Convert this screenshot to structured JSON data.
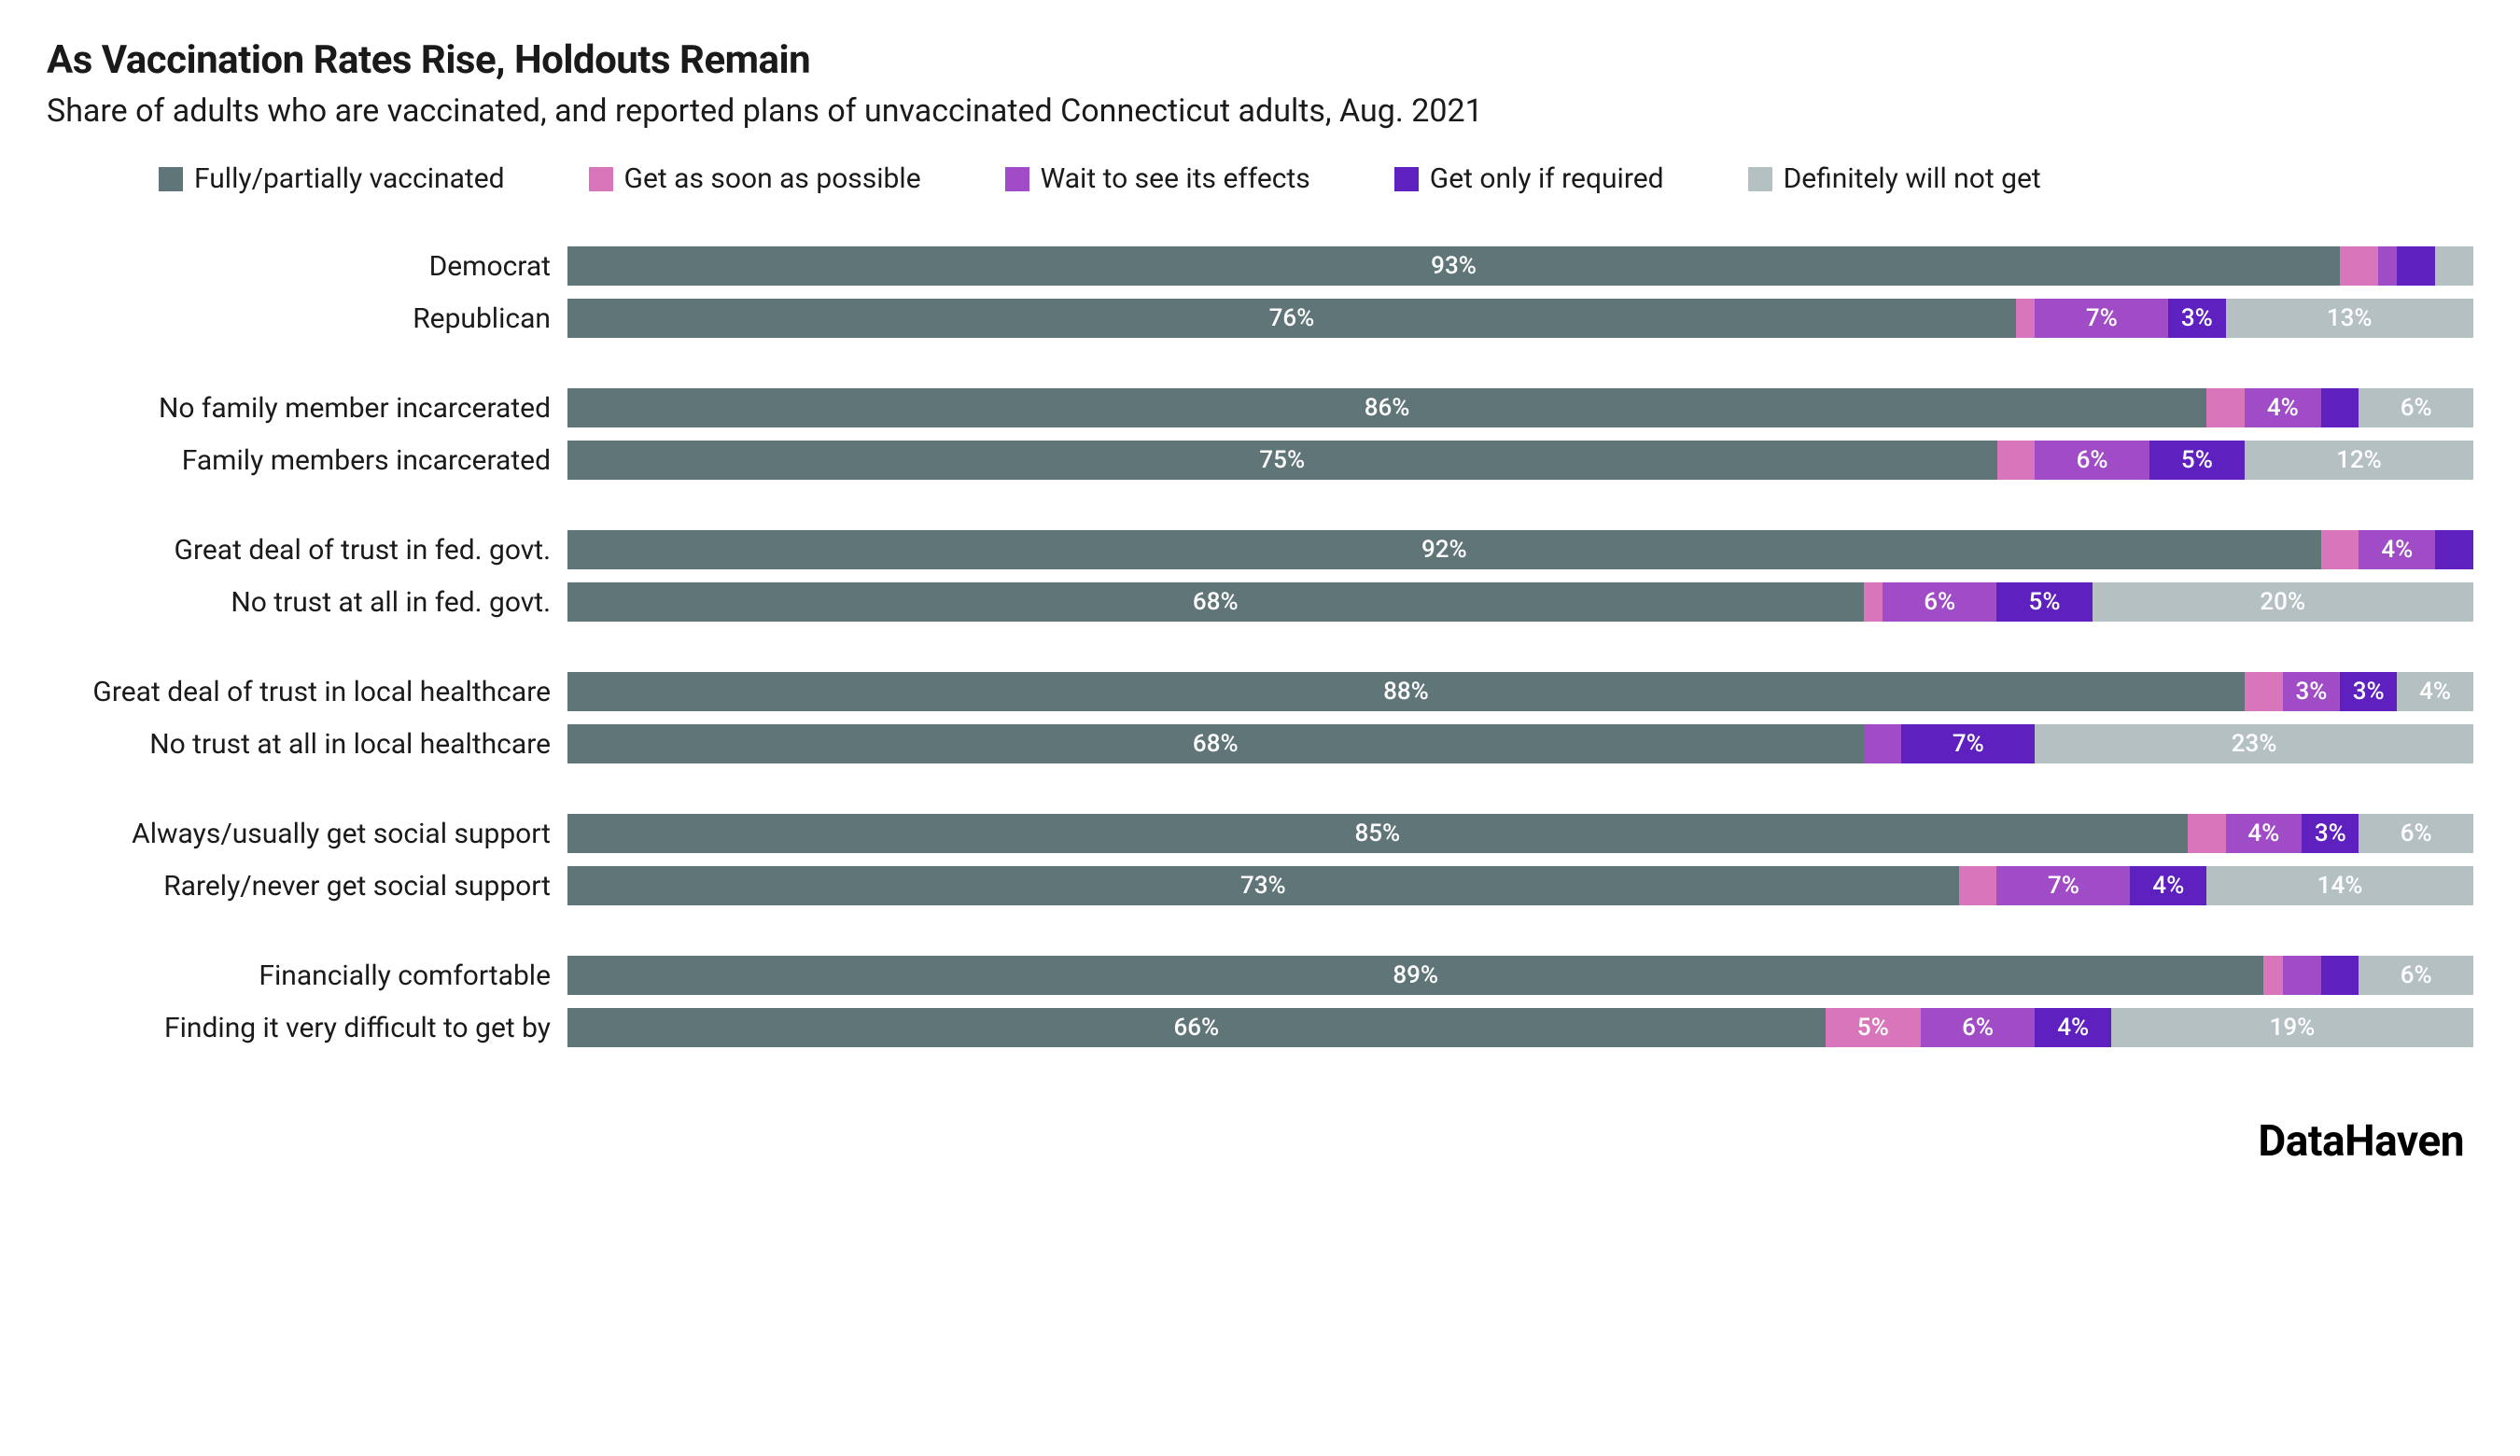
{
  "title": "As Vaccination Rates Rise, Holdouts Remain",
  "subtitle": "Share of adults who are vaccinated, and reported plans of unvaccinated Connecticut adults, Aug. 2021",
  "source": "DataHaven",
  "colors": {
    "vaccinated": "#607578",
    "asap": "#d976bb",
    "wait": "#a04cc7",
    "required": "#5e20be",
    "never": "#b4c0c2",
    "text_light": "#ffffff"
  },
  "legend": [
    {
      "key": "vaccinated",
      "label": "Fully/partially vaccinated"
    },
    {
      "key": "asap",
      "label": "Get as soon as possible"
    },
    {
      "key": "wait",
      "label": "Wait to see its effects"
    },
    {
      "key": "required",
      "label": "Get only if required"
    },
    {
      "key": "never",
      "label": "Definitely will not get"
    }
  ],
  "chart": {
    "type": "stacked-bar-horizontal",
    "value_suffix": "%",
    "label_min_value": 3,
    "groups": [
      {
        "rows": [
          {
            "label": "Democrat",
            "segments": [
              {
                "key": "vaccinated",
                "value": 93,
                "show_label": true
              },
              {
                "key": "asap",
                "value": 2,
                "show_label": false
              },
              {
                "key": "wait",
                "value": 1,
                "show_label": false
              },
              {
                "key": "required",
                "value": 2,
                "show_label": false
              },
              {
                "key": "never",
                "value": 2,
                "show_label": false
              }
            ]
          },
          {
            "label": "Republican",
            "segments": [
              {
                "key": "vaccinated",
                "value": 76,
                "show_label": true
              },
              {
                "key": "asap",
                "value": 1,
                "show_label": false
              },
              {
                "key": "wait",
                "value": 7,
                "show_label": true
              },
              {
                "key": "required",
                "value": 3,
                "show_label": true
              },
              {
                "key": "never",
                "value": 13,
                "show_label": true
              }
            ]
          }
        ]
      },
      {
        "rows": [
          {
            "label": "No family member incarcerated",
            "segments": [
              {
                "key": "vaccinated",
                "value": 86,
                "show_label": true
              },
              {
                "key": "asap",
                "value": 2,
                "show_label": false
              },
              {
                "key": "wait",
                "value": 4,
                "show_label": true
              },
              {
                "key": "required",
                "value": 2,
                "show_label": false
              },
              {
                "key": "never",
                "value": 6,
                "show_label": true
              }
            ]
          },
          {
            "label": "Family members incarcerated",
            "segments": [
              {
                "key": "vaccinated",
                "value": 75,
                "show_label": true
              },
              {
                "key": "asap",
                "value": 2,
                "show_label": false
              },
              {
                "key": "wait",
                "value": 6,
                "show_label": true
              },
              {
                "key": "required",
                "value": 5,
                "show_label": true
              },
              {
                "key": "never",
                "value": 12,
                "show_label": true
              }
            ]
          }
        ]
      },
      {
        "rows": [
          {
            "label": "Great deal of trust in fed. govt.",
            "segments": [
              {
                "key": "vaccinated",
                "value": 92,
                "show_label": true
              },
              {
                "key": "asap",
                "value": 2,
                "show_label": false
              },
              {
                "key": "wait",
                "value": 4,
                "show_label": true
              },
              {
                "key": "required",
                "value": 2,
                "show_label": false
              },
              {
                "key": "never",
                "value": 0,
                "show_label": false
              }
            ]
          },
          {
            "label": "No trust at all in fed. govt.",
            "segments": [
              {
                "key": "vaccinated",
                "value": 68,
                "show_label": true
              },
              {
                "key": "asap",
                "value": 1,
                "show_label": false
              },
              {
                "key": "wait",
                "value": 6,
                "show_label": true
              },
              {
                "key": "required",
                "value": 5,
                "show_label": true
              },
              {
                "key": "never",
                "value": 20,
                "show_label": true
              }
            ]
          }
        ]
      },
      {
        "rows": [
          {
            "label": "Great deal of trust in local healthcare",
            "segments": [
              {
                "key": "vaccinated",
                "value": 88,
                "show_label": true
              },
              {
                "key": "asap",
                "value": 2,
                "show_label": false
              },
              {
                "key": "wait",
                "value": 3,
                "show_label": true
              },
              {
                "key": "required",
                "value": 3,
                "show_label": true
              },
              {
                "key": "never",
                "value": 4,
                "show_label": true
              }
            ]
          },
          {
            "label": "No trust at all in local healthcare",
            "segments": [
              {
                "key": "vaccinated",
                "value": 68,
                "show_label": true
              },
              {
                "key": "asap",
                "value": 0,
                "show_label": false
              },
              {
                "key": "wait",
                "value": 2,
                "show_label": false
              },
              {
                "key": "required",
                "value": 7,
                "show_label": true
              },
              {
                "key": "never",
                "value": 23,
                "show_label": true
              }
            ]
          }
        ]
      },
      {
        "rows": [
          {
            "label": "Always/usually get social support",
            "segments": [
              {
                "key": "vaccinated",
                "value": 85,
                "show_label": true
              },
              {
                "key": "asap",
                "value": 2,
                "show_label": false
              },
              {
                "key": "wait",
                "value": 4,
                "show_label": true
              },
              {
                "key": "required",
                "value": 3,
                "show_label": true
              },
              {
                "key": "never",
                "value": 6,
                "show_label": true
              }
            ]
          },
          {
            "label": "Rarely/never get social support",
            "segments": [
              {
                "key": "vaccinated",
                "value": 73,
                "show_label": true
              },
              {
                "key": "asap",
                "value": 2,
                "show_label": false
              },
              {
                "key": "wait",
                "value": 7,
                "show_label": true
              },
              {
                "key": "required",
                "value": 4,
                "show_label": true
              },
              {
                "key": "never",
                "value": 14,
                "show_label": true
              }
            ]
          }
        ]
      },
      {
        "rows": [
          {
            "label": "Financially comfortable",
            "segments": [
              {
                "key": "vaccinated",
                "value": 89,
                "show_label": true
              },
              {
                "key": "asap",
                "value": 1,
                "show_label": false
              },
              {
                "key": "wait",
                "value": 2,
                "show_label": false
              },
              {
                "key": "required",
                "value": 2,
                "show_label": false
              },
              {
                "key": "never",
                "value": 6,
                "show_label": true
              }
            ]
          },
          {
            "label": "Finding it very difficult to get by",
            "segments": [
              {
                "key": "vaccinated",
                "value": 66,
                "show_label": true
              },
              {
                "key": "asap",
                "value": 5,
                "show_label": true
              },
              {
                "key": "wait",
                "value": 6,
                "show_label": true
              },
              {
                "key": "required",
                "value": 4,
                "show_label": true
              },
              {
                "key": "never",
                "value": 19,
                "show_label": true
              }
            ]
          }
        ]
      }
    ]
  }
}
